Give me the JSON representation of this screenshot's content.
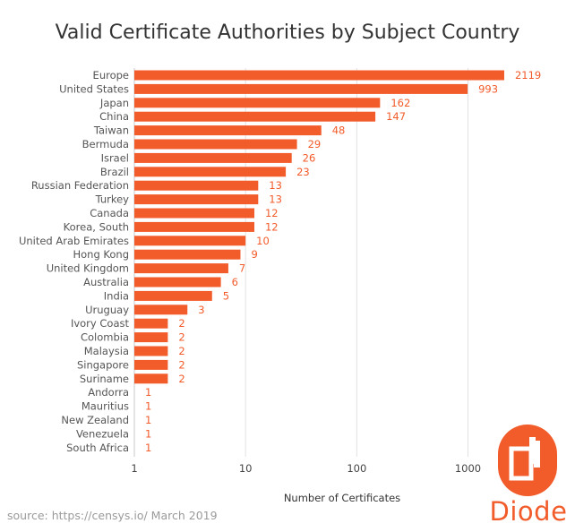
{
  "chart_data": {
    "type": "bar",
    "orientation": "horizontal",
    "title": "Valid Certificate Authorities by Subject Country",
    "xlabel": "Number of Certificates",
    "ylabel": "",
    "x_scale": "log",
    "xlim": [
      1,
      2200
    ],
    "x_ticks": [
      "1",
      "10",
      "100",
      "1000"
    ],
    "grid": true,
    "bar_color": "#f25b2a",
    "categories": [
      "Europe",
      "United States",
      "Japan",
      "China",
      "Taiwan",
      "Bermuda",
      "Israel",
      "Brazil",
      "Russian Federation",
      "Turkey",
      "Canada",
      "Korea, South",
      "United Arab Emirates",
      "Hong Kong",
      "United Kingdom",
      "Australia",
      "India",
      "Uruguay",
      "Ivory Coast",
      "Colombia",
      "Malaysia",
      "Singapore",
      "Suriname",
      "Andorra",
      "Mauritius",
      "New Zealand",
      "Venezuela",
      "South Africa"
    ],
    "values": [
      2119,
      993,
      162,
      147,
      48,
      29,
      26,
      23,
      13,
      13,
      12,
      12,
      10,
      9,
      7,
      6,
      5,
      3,
      2,
      2,
      2,
      2,
      2,
      1,
      1,
      1,
      1,
      1
    ]
  },
  "source": "source: https://censys.io/ March 2019",
  "logo": {
    "text": "Diode",
    "color": "#f25b2a"
  }
}
